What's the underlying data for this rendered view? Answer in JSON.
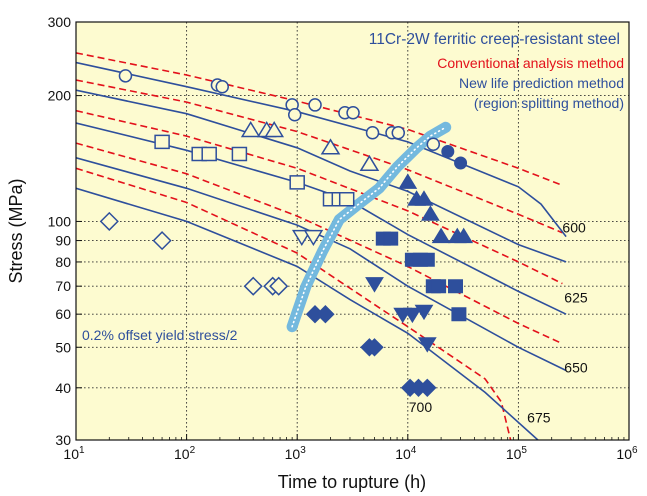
{
  "chart_data": {
    "type": "scatter",
    "title": "11Cr-2W ferritic creep-resistant steel",
    "xlabel": "Time to rupture (h)",
    "ylabel": "Stress (MPa)",
    "x_scale": "log",
    "y_scale": "log",
    "xlim": [
      10,
      1000000
    ],
    "ylim": [
      30,
      300
    ],
    "grid": true,
    "x_ticks": [
      {
        "v": 10,
        "base": "10",
        "exp": "1"
      },
      {
        "v": 100,
        "base": "10",
        "exp": "2"
      },
      {
        "v": 1000,
        "base": "10",
        "exp": "3"
      },
      {
        "v": 10000,
        "base": "10",
        "exp": "4"
      },
      {
        "v": 100000,
        "base": "10",
        "exp": "5"
      },
      {
        "v": 1000000,
        "base": "10",
        "exp": "6"
      }
    ],
    "y_ticks": [
      {
        "v": 30,
        "label": "30"
      },
      {
        "v": 40,
        "label": "40"
      },
      {
        "v": 50,
        "label": "50"
      },
      {
        "v": 60,
        "label": "60"
      },
      {
        "v": 70,
        "label": "70"
      },
      {
        "v": 80,
        "label": "80"
      },
      {
        "v": 90,
        "label": "90"
      },
      {
        "v": 100,
        "label": "100"
      },
      {
        "v": 200,
        "label": "200"
      },
      {
        "v": 300,
        "label": "300"
      }
    ],
    "legend_items": [
      {
        "label": "Conventional analysis method",
        "color": "#e3111b"
      },
      {
        "label": "New life prediction method",
        "color": "#2e4f9c"
      },
      {
        "label": "(region splitting method)",
        "color": "#2e4f9c"
      }
    ],
    "yield_label": "0.2% offset yield stress/2",
    "colors": {
      "background": "#fdfbd0",
      "solid_line": "#2e4f9c",
      "dashed_line": "#e3111b",
      "marker": "#2e4f9c",
      "yield_curve": "#74b9de",
      "grid": "#333333"
    },
    "temperature_labels": [
      {
        "label": "600",
        "x": 250000,
        "y": 94
      },
      {
        "label": "625",
        "x": 260000,
        "y": 64
      },
      {
        "label": "650",
        "x": 260000,
        "y": 43.5
      },
      {
        "label": "675",
        "x": 120000,
        "y": 33
      },
      {
        "label": "700",
        "x": 10200,
        "y": 35
      }
    ],
    "series": [
      {
        "marker": "circle",
        "open": [
          [
            28,
            223
          ],
          [
            190,
            212
          ],
          [
            210,
            210
          ],
          [
            900,
            190
          ],
          [
            950,
            180
          ],
          [
            1450,
            190
          ],
          [
            2700,
            182
          ],
          [
            3200,
            182
          ],
          [
            4800,
            163
          ],
          [
            7200,
            163
          ],
          [
            8200,
            163
          ],
          [
            17000,
            153
          ]
        ],
        "filled": [
          [
            23000,
            147
          ],
          [
            30000,
            138
          ]
        ]
      },
      {
        "marker": "triangle",
        "open": [
          [
            380,
            165
          ],
          [
            530,
            165
          ],
          [
            620,
            165
          ],
          [
            2000,
            150
          ],
          [
            4500,
            137
          ]
        ],
        "filled": [
          [
            10000,
            124
          ],
          [
            12000,
            113
          ],
          [
            14000,
            113
          ],
          [
            16000,
            104
          ],
          [
            20000,
            92
          ],
          [
            28000,
            92
          ],
          [
            32000,
            92
          ]
        ]
      },
      {
        "marker": "square",
        "open": [
          [
            60,
            155
          ],
          [
            130,
            145
          ],
          [
            160,
            145
          ],
          [
            300,
            145
          ],
          [
            1000,
            124
          ],
          [
            2000,
            113
          ],
          [
            2400,
            113
          ],
          [
            2800,
            113
          ]
        ],
        "filled": [
          [
            6000,
            91
          ],
          [
            7000,
            91
          ],
          [
            11000,
            81
          ],
          [
            13000,
            81
          ],
          [
            15000,
            81
          ],
          [
            17000,
            70
          ],
          [
            19000,
            70
          ],
          [
            27000,
            70
          ],
          [
            29000,
            60
          ]
        ]
      },
      {
        "marker": "triangle-down",
        "open": [
          [
            1100,
            92
          ],
          [
            1400,
            92
          ]
        ],
        "filled": [
          [
            5000,
            71
          ],
          [
            9000,
            60
          ],
          [
            11000,
            60
          ],
          [
            14000,
            61
          ],
          [
            15000,
            51
          ]
        ]
      },
      {
        "marker": "diamond",
        "open": [
          [
            20,
            100
          ],
          [
            60,
            90
          ],
          [
            400,
            70
          ],
          [
            600,
            70
          ],
          [
            680,
            70
          ]
        ],
        "filled": [
          [
            1450,
            60
          ],
          [
            1800,
            60
          ],
          [
            4500,
            50
          ],
          [
            5000,
            50
          ],
          [
            10500,
            40
          ],
          [
            12500,
            40
          ],
          [
            15000,
            40
          ]
        ]
      }
    ],
    "solid_curves": [
      [
        [
          10,
          240
        ],
        [
          100,
          210
        ],
        [
          1000,
          183
        ],
        [
          10000,
          155
        ],
        [
          100000,
          121
        ],
        [
          160000,
          110
        ],
        [
          270000,
          92
        ]
      ],
      [
        [
          10,
          206
        ],
        [
          100,
          181
        ],
        [
          1000,
          150
        ],
        [
          3000,
          132
        ],
        [
          10000,
          118
        ],
        [
          100000,
          88
        ],
        [
          270000,
          80
        ]
      ],
      [
        [
          10,
          172
        ],
        [
          100,
          148
        ],
        [
          1000,
          124
        ],
        [
          3000,
          112
        ],
        [
          10000,
          93
        ],
        [
          100000,
          68
        ],
        [
          270000,
          60
        ]
      ],
      [
        [
          10,
          142
        ],
        [
          100,
          120
        ],
        [
          1000,
          98
        ],
        [
          3000,
          86
        ],
        [
          10000,
          70
        ],
        [
          100000,
          50
        ],
        [
          270000,
          44
        ]
      ],
      [
        [
          10,
          120
        ],
        [
          100,
          100
        ],
        [
          1000,
          78
        ],
        [
          3000,
          65
        ],
        [
          10000,
          54
        ],
        [
          50000,
          39
        ],
        [
          150000,
          30
        ]
      ]
    ],
    "dashed_curves": [
      [
        [
          10,
          253
        ],
        [
          100,
          224
        ],
        [
          1000,
          194
        ],
        [
          10000,
          166
        ],
        [
          100000,
          134
        ],
        [
          250000,
          122
        ]
      ],
      [
        [
          10,
          218
        ],
        [
          100,
          193
        ],
        [
          1000,
          164
        ],
        [
          10000,
          133
        ],
        [
          100000,
          104
        ],
        [
          250000,
          94
        ]
      ],
      [
        [
          10,
          184
        ],
        [
          100,
          160
        ],
        [
          1000,
          134
        ],
        [
          10000,
          106
        ],
        [
          100000,
          80
        ],
        [
          250000,
          71
        ]
      ],
      [
        [
          10,
          154
        ],
        [
          100,
          130
        ],
        [
          1000,
          103
        ],
        [
          10000,
          78
        ],
        [
          100000,
          57
        ],
        [
          250000,
          51
        ]
      ],
      [
        [
          10,
          134
        ],
        [
          100,
          111
        ],
        [
          1000,
          84
        ],
        [
          10000,
          56
        ],
        [
          50000,
          42
        ],
        [
          70000,
          37
        ],
        [
          85000,
          30
        ]
      ]
    ],
    "yield_curve": [
      [
        900,
        56
      ],
      [
        1200,
        70
      ],
      [
        1700,
        85
      ],
      [
        2400,
        101
      ],
      [
        3600,
        110
      ],
      [
        5500,
        120
      ],
      [
        8000,
        135
      ],
      [
        12000,
        150
      ],
      [
        16000,
        160
      ],
      [
        22000,
        168
      ]
    ]
  }
}
